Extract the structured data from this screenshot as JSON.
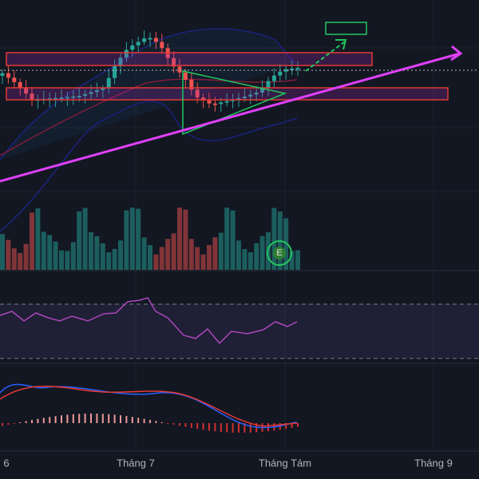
{
  "x_axis": {
    "labels": [
      "6",
      "Tháng 7",
      "Tháng Tám",
      "Tháng 9"
    ]
  },
  "earnings_marker": "E"
}
